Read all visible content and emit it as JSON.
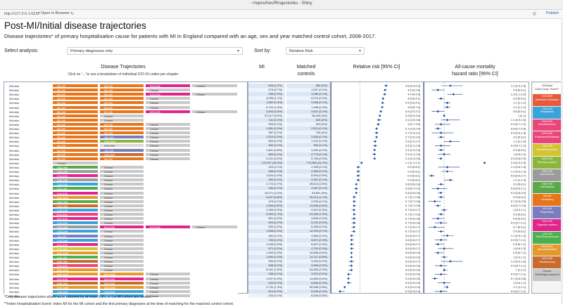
{
  "window": {
    "title": "~/repos/hes/Rtrajectories - Shiny"
  },
  "toolbar": {
    "url": "http://127.0.0.1:6227",
    "open_browser": "Open in Browser",
    "publish": "Publish"
  },
  "page": {
    "title": "Post-MI/Initial disease trajectories",
    "subtitle": "Disease trajectories* of primary hospitalisation cause for patients with MI in England compared with an age, sex and year matched control cohort, 2008-2017."
  },
  "controls": {
    "analysis_label": "Select analysis:",
    "analysis_value": "Primary diagnoses only",
    "sort_label": "Sort by:",
    "sort_value": "Relative Risk"
  },
  "columns": {
    "traj": "Disease Trajectories",
    "traj_sub": "Click on '...' to see a breakdown of individual ICD-10 codes per-chapter",
    "mi": "MI",
    "controls1": "Matched",
    "controls2": "controls",
    "rr": "Relative risk [95% CI]",
    "hr1": "All-cause mortality",
    "hr2": "hazard ratio [95% CI]"
  },
  "axes": {
    "rr_ticks": [
      "1.0",
      "3.0"
    ],
    "hr_ticks": [
      "0.5",
      "1.0",
      "1.5",
      "2.0"
    ]
  },
  "colors": {
    "MI/Initial": "#ffffff",
    "I00-I99": "#e8751a",
    "C00-D49": "#3aa3d9",
    "E00-E89": "#e8457a",
    "F01-F99": "#d3c432",
    "G00-G99": "#8bb63d",
    "H00-H59": "#9b9b9b",
    "H60-H95": "#5ba84a",
    "J00-J99": "#7b7bbf",
    "K00-K95": "#e0258c",
    "L00-L99": "#4caf50",
    "M00-M99": "#e29a2c",
    "N00-N99": "#c96a2e",
    "A00-B99": "#e85a3c",
    "Censor": "#c8c8c8"
  },
  "rows": [
    {
      "t": [
        "MI/Initial",
        "I00-I99",
        "I00-I99",
        "K00-K95",
        "Censor"
      ],
      "mi": "626 (0.2%)",
      "ctrl": "656 (0%)",
      "rr": "4.8 [4.3,5.3]",
      "rrv": 4.8,
      "hr": "1.2 [0.9,1.6]",
      "hrv": 1.2
    },
    {
      "t": [
        "MI/Initial",
        "I00-I99",
        "I00-I99",
        "Censor",
        ""
      ],
      "mi": "975 (0.7%)",
      "ctrl": "1,067 (0.1%)",
      "rr": "4.5 [4.2,5]",
      "rrv": 4.5,
      "hr": "0.8 [0.6,1]",
      "hrv": 0.8
    },
    {
      "t": [
        "MI/Initial",
        "I00-I99",
        "I00-I99",
        "K00-K95",
        "Censor"
      ],
      "mi": "948 (0.3%)",
      "ctrl": "1,080 (0.1%)",
      "rr": "4.4 [4,4.9]",
      "rrv": 4.4,
      "hr": "1.3 [1.1,1.6]",
      "hrv": 1.3
    },
    {
      "t": [
        "MI/Initial",
        "I00-I99",
        "I00-I99",
        "Censor",
        ""
      ],
      "mi": "4,095 (1.1%)",
      "ctrl": "5,079 (0.3%)",
      "rr": "4 [3.8,4.1]",
      "rrv": 4.0,
      "hr": "0.9 [0.8,1]",
      "hrv": 0.9
    },
    {
      "t": [
        "MI/Initial",
        "I00-I99",
        "I00-I99",
        "Censor",
        ""
      ],
      "mi": "1,562 (0.4%)",
      "ctrl": "2,066 (0.1%)",
      "rr": "3.9 [3.6,4.1]",
      "rrv": 3.9,
      "hr": "1.1 [1,1.2]",
      "hrv": 1.1
    },
    {
      "t": [
        "MI/Initial",
        "I00-I99",
        "I00-I99",
        "Censor",
        ""
      ],
      "mi": "5,722 (1.5%)",
      "ctrl": "7,498 (0.4%)",
      "rr": "3.8 [3.7,4]",
      "rrv": 3.8,
      "hr": "1.1 [1,1.2]",
      "hrv": 1.1
    },
    {
      "t": [
        "MI/Initial",
        "I00-I99",
        "I00-I99",
        "K00-K95",
        "Censor"
      ],
      "mi": "1,843 (0.5%)",
      "ctrl": "2,647 (0.1%)",
      "rr": "3.5 [3.3,3.7]",
      "rrv": 3.5,
      "hr": "0.8 [0.6,1]",
      "hrv": 0.8
    },
    {
      "t": [
        "MI/Initial",
        "I00-I99",
        "Censor",
        "",
        ""
      ],
      "mi": "37,017 (9.9%)",
      "ctrl": "55,445 (3%)",
      "rr": "3.3 [3.3,3.4]",
      "rrv": 3.3,
      "hr": "1 [1,1]",
      "hrv": 1.0
    },
    {
      "t": [
        "MI/Initial",
        "I00-I99",
        "Censor",
        "",
        ""
      ],
      "mi": "411 (0.1%)",
      "ctrl": "626 (0%)",
      "rr": "3.1 [2.8,3.6]",
      "rrv": 3.1,
      "hr": "1.1 [0.9,1.5]",
      "hrv": 1.1
    },
    {
      "t": [
        "MI/Initial",
        "I00-I99",
        "I00-I99",
        "Censor",
        ""
      ],
      "mi": "595 (0.2%)",
      "ctrl": "920 (0%)",
      "rr": "3 [2.7,3.3]",
      "rrv": 3.0,
      "hr": "0.9 [0.7,1.2]",
      "hrv": 0.9
    },
    {
      "t": [
        "MI/Initial",
        "I00-I99",
        "I00-I99",
        "Censor",
        ""
      ],
      "mi": "1,381 (0.4%)",
      "ctrl": "2,512 (0.1%)",
      "rr": "2.7 [2.6,2.9]",
      "rrv": 2.7,
      "hr": "0.8 [0.7,0.9]",
      "hrv": 0.8
    },
    {
      "t": [
        "MI/Initial",
        "I00-I99",
        "I00-I99",
        "Censor",
        ""
      ],
      "mi": "387 (0.1%)",
      "ctrl": "706 (0%)",
      "rr": "2.7 [2.4,3.1]",
      "rrv": 2.7,
      "hr": "0.9 [0.6,1.3]",
      "hrv": 0.9
    },
    {
      "t": [
        "MI/Initial",
        "I00-I99",
        "J00-J99",
        "Censor",
        ""
      ],
      "mi": "1,310 (0.3%)",
      "ctrl": "2,626 (0.1%)",
      "rr": "2.7 [2.5,2.9]",
      "rrv": 2.7,
      "hr": "0.9 [0.8,1]",
      "hrv": 0.9
    },
    {
      "t": [
        "MI/Initial",
        "I00-I99",
        "G00-G99",
        "Censor",
        ""
      ],
      "mi": "565 (0.2%)",
      "ctrl": "1,122 (0.1%)",
      "rr": "2.5 [2.2,2.7]",
      "rrv": 2.5,
      "hr": "1.2 [1,1.5]",
      "hrv": 1.2
    },
    {
      "t": [
        "MI/Initial",
        "I00-I99",
        "R00-R99",
        "Censor",
        ""
      ],
      "mi": "492 (0.1%)",
      "ctrl": "990 (0.1%)",
      "rr": "2.5 [2.2,2.8]",
      "rrv": 2.5,
      "hr": "0.9 [0.7,1.2]",
      "hrv": 0.9
    },
    {
      "t": [
        "MI/Initial",
        "I00-I99",
        "J00-J99",
        "Censor",
        ""
      ],
      "mi": "2,811 (0.8%)",
      "ctrl": "4,309 (0.2%)",
      "rr": "2.4 [2.3,2.6]",
      "rrv": 2.4,
      "hr": "0.9 [0.8,1]",
      "hrv": 0.9
    },
    {
      "t": [
        "MI/Initial",
        "I00-I99",
        "N00-N99",
        "Censor",
        ""
      ],
      "mi": "659 (0.2%)",
      "ctrl": "2,770 (0.1%)",
      "rr": "2.4 [2.1,2.6]",
      "rrv": 2.4,
      "hr": "1 [0.8,1.2]",
      "hrv": 1.0
    },
    {
      "t": [
        "MI/Initial",
        "I00-I99",
        "I00-I99",
        "Censor",
        ""
      ],
      "mi": "3,191 (0.9%)",
      "ctrl": "5,706 (0.3%)",
      "rr": "2.4 [2.3,2.5]",
      "rrv": 2.4,
      "hr": "0.9 [0.8,0.9]",
      "hrv": 0.9
    },
    {
      "t": [
        "MI/Initial",
        "Censor",
        "",
        "",
        ""
      ],
      "mi": "170,297 (45.3%)",
      "ctrl": "773,383 (41.2%)",
      "rr": "1.1 [1.1,1.1]",
      "rrv": 1.1,
      "hr": "2.3 [2.3,2.3]",
      "hrv": 2.3
    },
    {
      "t": [
        "MI/Initial",
        "H60-H95",
        "Censor",
        "",
        ""
      ],
      "mi": "429 (0.1%)",
      "ctrl": "2,335 (0.1%)",
      "rr": "0.9 [0.8,1]",
      "rrv": 0.9,
      "hr": "1.1 [0.8,1.5]",
      "hrv": 1.1
    },
    {
      "t": [
        "MI/Initial",
        "H00-H59",
        "Censor",
        "",
        ""
      ],
      "mi": "548 (0.1%)",
      "ctrl": "2,969 (0.2%)",
      "rr": "0.9 [0.8,1]",
      "rrv": 0.9,
      "hr": "1.1 [0.9,1.3]",
      "hrv": 1.1
    },
    {
      "t": [
        "MI/Initial",
        "K00-K95",
        "Censor",
        "",
        ""
      ],
      "mi": "1,634 (0.4%)",
      "ctrl": "8,904 (0.5%)",
      "rr": "0.9 [0.8,1]",
      "rrv": 0.9,
      "hr": "0.6 [0.5,0.7]",
      "hrv": 0.6
    },
    {
      "t": [
        "MI/Initial",
        "H00-H59",
        "Censor",
        "",
        ""
      ],
      "mi": "450 (0.1%)",
      "ctrl": "2,467 (0.1%)",
      "rr": "0.9 [0.8,1]",
      "rrv": 0.9,
      "hr": "1.2 [1,1.3]",
      "hrv": 1.2
    },
    {
      "t": [
        "MI/Initial",
        "C00-D49",
        "Censor",
        "",
        ""
      ],
      "mi": "2,723 (0.7%)",
      "ctrl": "49,613 (2.6%)",
      "rr": "0.8 [0.8,0.8]",
      "rrv": 0.8,
      "hr": "0.9 [0.8,1]",
      "hrv": 0.9
    },
    {
      "t": [
        "MI/Initial",
        "L00-L99",
        "Censor",
        "",
        ""
      ],
      "mi": "436 (0.1%)",
      "ctrl": "2,587 (0.1%)",
      "rr": "0.8 [0.7,0.9]",
      "rrv": 0.8,
      "hr": "0.8 [0.6,1.1]",
      "hrv": 0.8
    },
    {
      "t": [
        "MI/Initial",
        "K00-K95",
        "Censor",
        "",
        ""
      ],
      "mi": "16,271 (4.3%)",
      "ctrl": "93,801 (5%)",
      "rr": "0.8 [0.8,0.8]",
      "rrv": 0.8,
      "hr": "0.9 [0.8,0.9]",
      "hrv": 0.9
    },
    {
      "t": [
        "MI/Initial",
        "M00-M99",
        "Censor",
        "",
        ""
      ],
      "mi": "3,037 (0.8%)",
      "ctrl": "20,414 (1.1%)",
      "rr": "0.7 [0.7,0.8]",
      "rrv": 0.7,
      "hr": "0.9 [0.8,1]",
      "hrv": 0.9
    },
    {
      "t": [
        "MI/Initial",
        "H60-H95",
        "Censor",
        "",
        ""
      ],
      "mi": "475 (0.1%)",
      "ctrl": "2,254 (0.1%)",
      "rr": "0.7 [0.7,0.8]",
      "rrv": 0.7,
      "hr": "0.7 [0.5,0.9]",
      "hrv": 0.7
    },
    {
      "t": [
        "MI/Initial",
        "N00-N99",
        "Censor",
        "",
        ""
      ],
      "mi": "1,906 (0.5%)",
      "ctrl": "11,608 (0.6%)",
      "rr": "0.7 [0.7,0.8]",
      "rrv": 0.7,
      "hr": "0.8 [0.7,0.9]",
      "hrv": 0.8
    },
    {
      "t": [
        "MI/Initial",
        "C00-D49",
        "Censor",
        "",
        ""
      ],
      "mi": "1,283 (0.3%)",
      "ctrl": "9,312 (0.5%)",
      "rr": "0.7 [0.6,0.7]",
      "rrv": 0.7,
      "hr": "1 [0.9,1.1]",
      "hrv": 1.0
    },
    {
      "t": [
        "MI/Initial",
        "E00-E89",
        "Censor",
        "",
        ""
      ],
      "mi": "4,269 (1.1%)",
      "ctrl": "24,180 (1.3%)",
      "rr": "0.7 [0.7,0.8]",
      "rrv": 0.7,
      "hr": "0.9 [0.8,1]",
      "hrv": 0.9
    },
    {
      "t": [
        "MI/Initial",
        "K00-K95",
        "Censor",
        "",
        ""
      ],
      "mi": "651 (0.2%)",
      "ctrl": "4,600 (0.2%)",
      "rr": "0.7 [0.6,0.8]",
      "rrv": 0.7,
      "hr": "0.8 [0.6,1]",
      "hrv": 0.8
    },
    {
      "t": [
        "MI/Initial",
        "C00-D49",
        "Censor",
        "",
        ""
      ],
      "mi": "825 (0.2%)",
      "ctrl": "5,232 (0.3%)",
      "rr": "0.7 [0.6,0.8]",
      "rrv": 0.7,
      "hr": "0.9 [0.7,1.1]",
      "hrv": 0.9
    },
    {
      "t": [
        "MI/Initial",
        "H00-H59",
        "K00-K95",
        "K00-K95",
        "Censor"
      ],
      "mi": "699 (0.2%)",
      "ctrl": "5,336 (0.3%)",
      "rr": "0.7 [0.6,0.7]",
      "rrv": 0.7,
      "hr": "0.7 [0.5,1]",
      "hrv": 0.7
    },
    {
      "t": [
        "MI/Initial",
        "C00-D49",
        "Censor",
        "",
        ""
      ],
      "mi": "1,598 (0.4%)",
      "ctrl": "12,323 (0.7%)",
      "rr": "0.7 [0.6,0.7]",
      "rrv": 0.7,
      "hr": "0.9 [0.8,1]",
      "hrv": 0.9
    },
    {
      "t": [
        "MI/Initial",
        "J00-J99",
        "Censor",
        "",
        ""
      ],
      "mi": "482 (0.1%)",
      "ctrl": "3,980 (0.2%)",
      "rr": "0.6 [0.6,0.7]",
      "rrv": 0.6,
      "hr": "1.1 [0.9,1.3]",
      "hrv": 1.1
    },
    {
      "t": [
        "MI/Initial",
        "C00-D49",
        "Censor",
        "",
        ""
      ],
      "mi": "705 (0.2%)",
      "ctrl": "5,671 (0.3%)",
      "rr": "0.6 [0.6,0.7]",
      "rrv": 0.6,
      "hr": "0.9 [0.7,1.1]",
      "hrv": 0.9
    },
    {
      "t": [
        "MI/Initial",
        "K00-K95",
        "Censor",
        "",
        ""
      ],
      "mi": "1,049 (0.3%)",
      "ctrl": "8,407 (0.4%)",
      "rr": "0.6 [0.6,0.7]",
      "rrv": 0.6,
      "hr": "0.8 [0.7,1]",
      "hrv": 0.8
    },
    {
      "t": [
        "MI/Initial",
        "F01-F99",
        "Censor",
        "",
        ""
      ],
      "mi": "571 (0.2%)",
      "ctrl": "4,702 (0.3%)",
      "rr": "0.6 [0.6,0.7]",
      "rrv": 0.6,
      "hr": "1 [0.8,1.3]",
      "hrv": 1.0
    },
    {
      "t": [
        "MI/Initial",
        "M00-M99",
        "Censor",
        "",
        ""
      ],
      "mi": "1,254 (0.3%)",
      "ctrl": "10,588 (0.6%)",
      "rr": "0.6 [0.6,0.6]",
      "rrv": 0.6,
      "hr": "0.8 [0.7,1]",
      "hrv": 0.8
    },
    {
      "t": [
        "MI/Initial",
        "L00-L99",
        "Censor",
        "",
        ""
      ],
      "mi": "1,690 (0.4%)",
      "ctrl": "14,127 (0.8%)",
      "rr": "0.6 [0.6,0.6]",
      "rrv": 0.6,
      "hr": "1 [0.9,1.1]",
      "hrv": 1.0
    },
    {
      "t": [
        "MI/Initial",
        "N00-N99",
        "Censor",
        "",
        ""
      ],
      "mi": "405 (0.1%)",
      "ctrl": "3,434 (0.2%)",
      "rr": "0.6 [0.5,0.7]",
      "rrv": 0.6,
      "hr": "1.2 [0.9,1.6]",
      "hrv": 1.2
    },
    {
      "t": [
        "MI/Initial",
        "E00-E89",
        "Censor",
        "",
        ""
      ],
      "mi": "638 (0.2%)",
      "ctrl": "5,466 (0.3%)",
      "rr": "0.6 [0.5,0.6]",
      "rrv": 0.6,
      "hr": "0.9 [0.7,1.1]",
      "hrv": 0.9
    },
    {
      "t": [
        "MI/Initial",
        "M00-M99",
        "Censor",
        "",
        ""
      ],
      "mi": "6,161 (1.6%)",
      "ctrl": "54,555 (2.9%)",
      "rr": "0.6 [0.5,0.6]",
      "rrv": 0.6,
      "hr": "1 [1,1.1]",
      "hrv": 1.0
    },
    {
      "t": [
        "MI/Initial",
        "M00-M99",
        "M00-M99",
        "Censor",
        ""
      ],
      "mi": "938 (0.2%)",
      "ctrl": "3,970 (0.2%)",
      "rr": "0.5 [0.5,0.6]",
      "rrv": 0.5,
      "hr": "0.9 [0.7,1.1]",
      "hrv": 0.9
    },
    {
      "t": [
        "MI/Initial",
        "K00-K95",
        "K00-K95",
        "Censor",
        ""
      ],
      "mi": "1,207 (0.3%)",
      "ctrl": "11,850 (0.6%)",
      "rr": "0.5 [0.5,0.5]",
      "rrv": 0.5,
      "hr": "0.7 [0.6,0.8]",
      "hrv": 0.7
    },
    {
      "t": [
        "MI/Initial",
        "N00-N99",
        "N00-N99",
        "Censor",
        ""
      ],
      "mi": "649 (0.2%)",
      "ctrl": "6,506 (0.3%)",
      "rr": "0.5 [0.5,0.6]",
      "rrv": 0.5,
      "hr": "1 [0.8,1.2]",
      "hrv": 1.0
    },
    {
      "t": [
        "MI/Initial",
        "M00-M99",
        "M00-M99",
        "Censor",
        ""
      ],
      "mi": "4,731 (1.3%)",
      "ctrl": "52,698 (2.8%)",
      "rr": "0.4 [0.4,0.4]",
      "rrv": 0.4,
      "hr": "1.1 [1,1.1]",
      "hrv": 1.1
    },
    {
      "t": [
        "MI/Initial",
        "C00-D49",
        "C00-D49",
        "Censor",
        ""
      ],
      "mi": "610 (0.2%)",
      "ctrl": "8,246 (0.4%)",
      "rr": "0.3 [0.3,0.4]",
      "rrv": 0.3,
      "hr": "0.9 [0.7,1.1]",
      "hrv": 0.9
    },
    {
      "t": [
        "MI/Initial",
        "C00-D49",
        "C00-D49",
        "Censor",
        ""
      ],
      "mi": "440 (0.1%)",
      "ctrl": "6,034 (0.3%)",
      "rr": "0.3 [0.3,0.3]",
      "rrv": 0.3,
      "hr": "0.9 [0.7,1.2]",
      "hrv": 0.9
    }
  ],
  "legend": [
    {
      "code": "MI/Initial",
      "name": "Index Hosp. Event**"
    },
    {
      "code": "A00-B99",
      "name": "Infectious Diseases"
    },
    {
      "code": "C00-D49",
      "name": "Neoplasms"
    },
    {
      "code": "E00-E89",
      "name": "Blood/Immune"
    },
    {
      "code": "E00-E89",
      "name": "Endocrine/Metabolic"
    },
    {
      "code": "F01-F99",
      "name": "Mental/Neurodev."
    },
    {
      "code": "G00-G99",
      "name": "Nervous system"
    },
    {
      "code": "H00-H59",
      "name": "Eye/Adnexa"
    },
    {
      "code": "H60-H95",
      "name": "Ear/Mastoid"
    },
    {
      "code": "I00-I99",
      "name": "Circulatory"
    },
    {
      "code": "J00-J99",
      "name": "Respiratory"
    },
    {
      "code": "K00-K95",
      "name": "Digestive system"
    },
    {
      "code": "L00-L99",
      "name": "Skin/Subcutaneous"
    },
    {
      "code": "M00-M99",
      "name": "Musculoskeletal"
    },
    {
      "code": "N00-N99",
      "name": "Genitourinary"
    },
    {
      "code": "Censor",
      "name": "Died/Right-censored"
    }
  ],
  "footnotes": {
    "f1": "*Only disease trajectories which were followed by at least 0.1% of the MI cohort are shown.",
    "f2": "**Index Hospitalisation Event: index MI for the MI cohort and the first primary diagnoses at the time of matching for the matched control cohort."
  }
}
